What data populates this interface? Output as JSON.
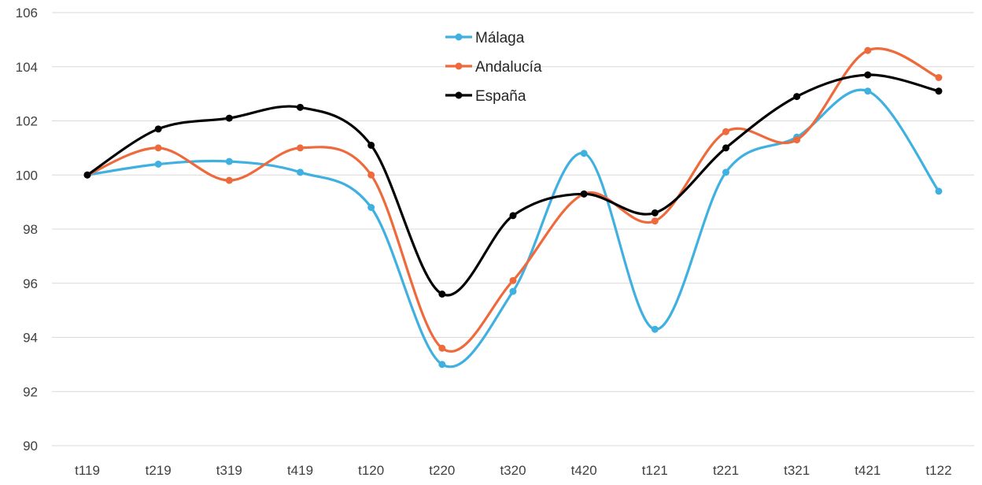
{
  "chart_data": {
    "type": "line",
    "title": "",
    "xlabel": "",
    "ylabel": "",
    "ylim": [
      90,
      106
    ],
    "yticks": [
      90,
      92,
      94,
      96,
      98,
      100,
      102,
      104,
      106
    ],
    "ytick_labels": [
      "90",
      "92",
      "94",
      "96",
      "98",
      "100",
      "102",
      "104",
      "106"
    ],
    "grid": true,
    "smooth": true,
    "legend_position": "top-center",
    "categories": [
      "t119",
      "t219",
      "t319",
      "t419",
      "t120",
      "t220",
      "t320",
      "t420",
      "t121",
      "t221",
      "t321",
      "t421",
      "t122"
    ],
    "series": [
      {
        "name": "Málaga",
        "color": "#3fb0e0",
        "values": [
          100.0,
          100.4,
          100.5,
          100.1,
          98.8,
          93.0,
          95.7,
          100.8,
          94.3,
          100.1,
          101.4,
          103.1,
          99.4
        ]
      },
      {
        "name": "Andalucía",
        "color": "#ee6a3c",
        "values": [
          100.0,
          101.0,
          99.8,
          101.0,
          100.0,
          93.6,
          96.1,
          99.3,
          98.3,
          101.6,
          101.3,
          104.6,
          103.6
        ]
      },
      {
        "name": "España",
        "color": "#000000",
        "values": [
          100.0,
          101.7,
          102.1,
          102.5,
          101.1,
          95.6,
          98.5,
          99.3,
          98.6,
          101.0,
          102.9,
          103.7,
          103.1
        ]
      }
    ]
  }
}
